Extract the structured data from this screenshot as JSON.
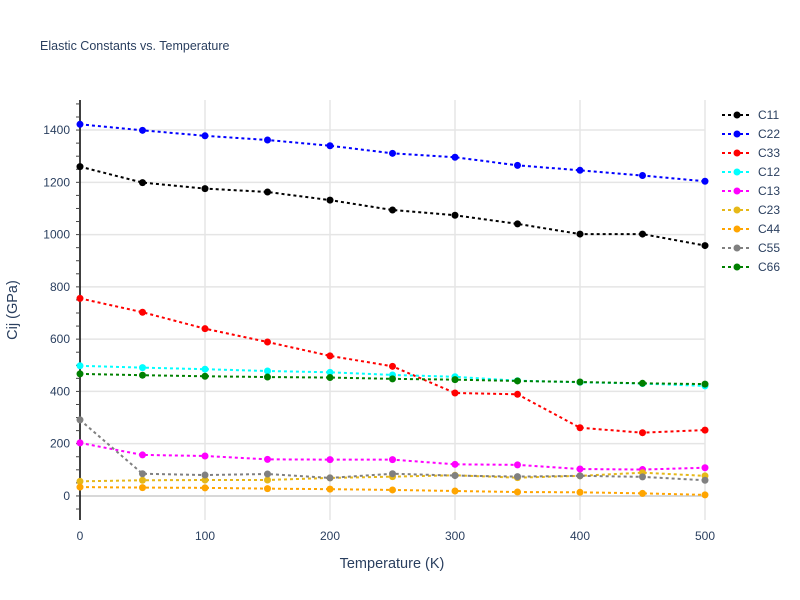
{
  "chart_data": {
    "type": "line",
    "title": "Elastic Constants vs. Temperature",
    "xlabel": "Temperature (K)",
    "ylabel": "Cij (GPa)",
    "xlim": [
      0,
      500
    ],
    "ylim": [
      -92,
      1515
    ],
    "xticks": [
      0,
      100,
      200,
      300,
      400,
      500
    ],
    "yticks": [
      0,
      200,
      400,
      600,
      800,
      1000,
      1200,
      1400
    ],
    "grid": true,
    "legend": "right",
    "x": [
      0,
      50,
      100,
      150,
      200,
      250,
      300,
      350,
      400,
      450,
      500
    ],
    "series": [
      {
        "name": "C11",
        "color": "#000000",
        "values": [
          1260,
          1199,
          1176,
          1163,
          1132,
          1094,
          1074,
          1041,
          1002,
          1002,
          958
        ]
      },
      {
        "name": "C22",
        "color": "#0000ff",
        "values": [
          1422,
          1399,
          1378,
          1362,
          1340,
          1311,
          1296,
          1265,
          1246,
          1226,
          1204
        ]
      },
      {
        "name": "C33",
        "color": "#ff0000",
        "values": [
          756,
          703,
          640,
          589,
          536,
          496,
          394,
          389,
          261,
          242,
          252
        ]
      },
      {
        "name": "C12",
        "color": "#00ffff",
        "values": [
          498,
          491,
          485,
          478,
          473,
          463,
          456,
          441,
          435,
          430,
          421
        ]
      },
      {
        "name": "C13",
        "color": "#ff00ff",
        "values": [
          203,
          157,
          153,
          140,
          139,
          139,
          121,
          119,
          103,
          101,
          108
        ]
      },
      {
        "name": "C23",
        "color": "#e6b818",
        "values": [
          56,
          60,
          61,
          61,
          69,
          74,
          79,
          70,
          77,
          89,
          77
        ]
      },
      {
        "name": "C44",
        "color": "#ffa500",
        "values": [
          34,
          32,
          31,
          28,
          26,
          23,
          19,
          15,
          14,
          10,
          4
        ]
      },
      {
        "name": "C55",
        "color": "#808080",
        "values": [
          291,
          85,
          80,
          84,
          69,
          85,
          78,
          74,
          77,
          73,
          60
        ]
      },
      {
        "name": "C66",
        "color": "#008000",
        "values": [
          467,
          462,
          458,
          455,
          453,
          448,
          445,
          440,
          436,
          431,
          428
        ]
      }
    ]
  }
}
